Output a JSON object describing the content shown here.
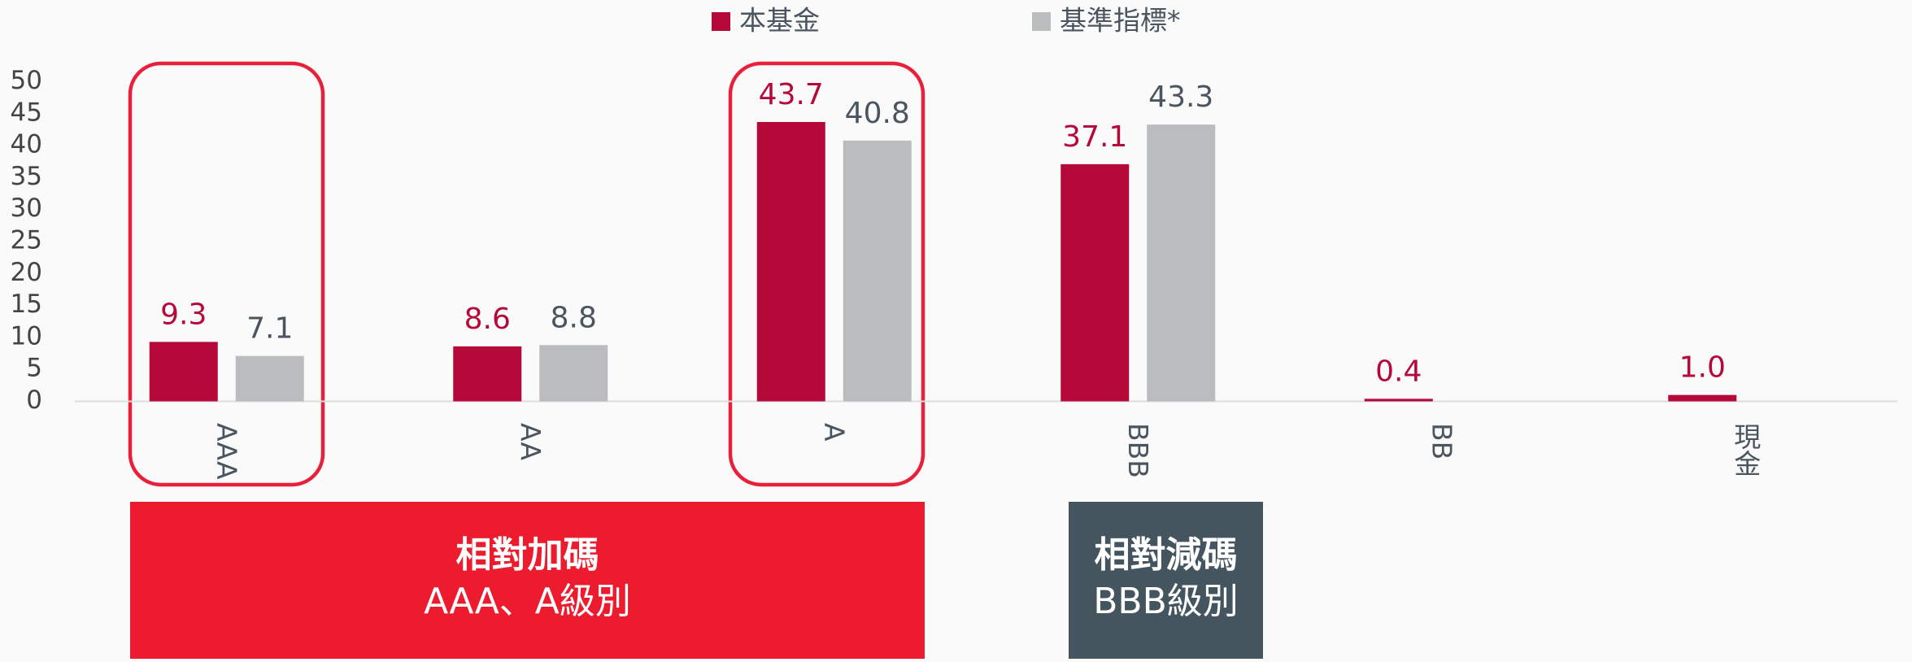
{
  "chart_data": {
    "type": "bar",
    "categories": [
      "AAA",
      "AA",
      "A",
      "BBB",
      "BB",
      "現金"
    ],
    "series": [
      {
        "name": "本基金",
        "color": "#b5093a",
        "values": [
          9.3,
          8.6,
          43.7,
          37.1,
          0.4,
          1.0
        ],
        "value_labels": [
          "9.3",
          "8.6",
          "43.7",
          "37.1",
          "0.4",
          "1.0"
        ]
      },
      {
        "name": "基準指標*",
        "color": "#bbbcbe",
        "values": [
          7.1,
          8.8,
          40.8,
          43.3,
          null,
          null
        ],
        "value_labels": [
          "7.1",
          "8.8",
          "40.8",
          "43.3",
          null,
          null
        ]
      }
    ],
    "ylim": [
      0,
      50
    ],
    "yticks": [
      0,
      5,
      10,
      15,
      20,
      25,
      30,
      35,
      40,
      45,
      50
    ],
    "legend": "top",
    "annotations": [
      {
        "lines": [
          "相對加碼",
          "AAA、A級別"
        ],
        "color": "#ec1c2e"
      },
      {
        "lines": [
          "相對減碼",
          "BBB級別"
        ],
        "color": "#455560"
      }
    ]
  }
}
